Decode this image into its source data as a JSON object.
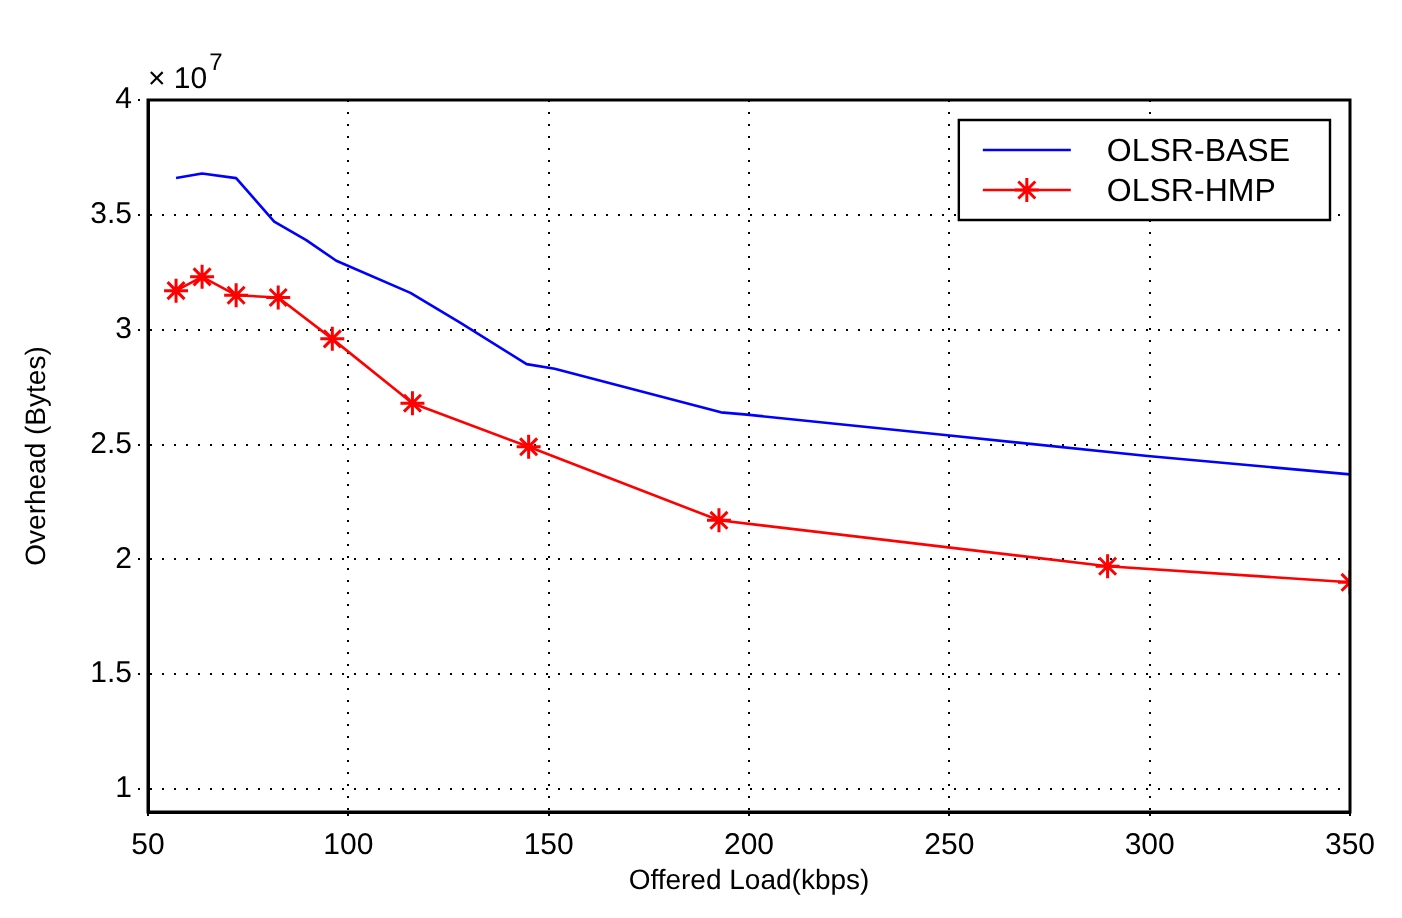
{
  "chart_data": {
    "type": "line",
    "xlabel": "Offered Load(kbps)",
    "ylabel": "Overhead (Bytes)",
    "annotations": [
      "× 10$^{7}$"
    ],
    "xlim": [
      50,
      350
    ],
    "xticks": [
      50,
      100,
      150,
      200,
      250,
      300,
      350
    ],
    "ylim": [
      0.9,
      4
    ],
    "yticks": [
      1,
      1.5,
      2,
      2.5,
      3,
      3.5,
      4
    ],
    "grid": true,
    "legend": "top right",
    "series": [
      {
        "name": "OLSR-BASE",
        "color": "#0000ff",
        "marker": "none",
        "x": [
          57,
          63.5,
          72,
          81.5,
          89.5,
          97,
          115.5,
          128,
          144.5,
          151.5,
          193,
          199.5,
          249.5,
          299.5,
          350
        ],
        "values": [
          3.66,
          3.68,
          3.66,
          3.47,
          3.39,
          3.3,
          3.16,
          3.03,
          2.85,
          2.83,
          2.64,
          2.63,
          2.54,
          2.45,
          2.37
        ]
      },
      {
        "name": "OLSR-HMP",
        "color": "#ff0000",
        "marker": "cross",
        "x": [
          57,
          63.5,
          72,
          82.5,
          96,
          116,
          145,
          192.5,
          289.5,
          350
        ],
        "values": [
          3.17,
          3.23,
          3.15,
          3.14,
          2.96,
          2.68,
          2.49,
          2.17,
          1.97,
          1.9
        ]
      }
    ]
  }
}
